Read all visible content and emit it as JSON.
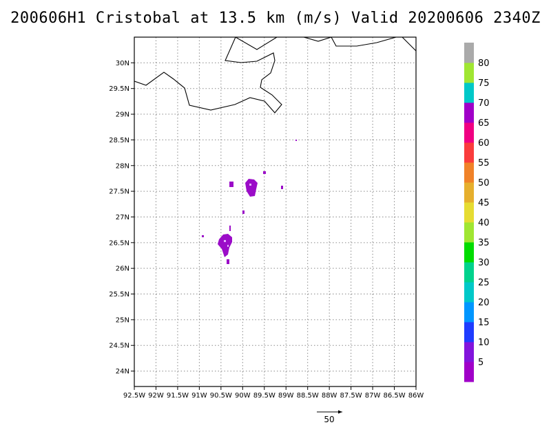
{
  "title": "200606H1 Cristobal at 13.5 km (m/s) Valid 20200606 2340Z",
  "map": {
    "lon_range": [
      -92.5,
      -86.0
    ],
    "lat_range": [
      23.7,
      30.5
    ],
    "x_ticks": [
      "92.5W",
      "92W",
      "91.5W",
      "91W",
      "90.5W",
      "90W",
      "89.5W",
      "89W",
      "88.5W",
      "88W",
      "87.5W",
      "87W",
      "86.5W",
      "86W"
    ],
    "x_tick_values": [
      -92.5,
      -92,
      -91.5,
      -91,
      -90.5,
      -90,
      -89.5,
      -89,
      -88.5,
      -88,
      -87.5,
      -87,
      -86.5,
      -86
    ],
    "y_ticks": [
      "30N",
      "29.5N",
      "29N",
      "28.5N",
      "28N",
      "27.5N",
      "27N",
      "26.5N",
      "26N",
      "25.5N",
      "25N",
      "24.5N",
      "24N"
    ],
    "y_tick_values": [
      30,
      29.5,
      29,
      28.5,
      28,
      27.5,
      27,
      26.5,
      26,
      25.5,
      25,
      24.5,
      24
    ],
    "grid": "dotted",
    "coastline_color": "#000000",
    "data_color": "#9b0cc8",
    "highlight_color": "#e4b0ff"
  },
  "colorbar": {
    "labels": [
      "5",
      "10",
      "15",
      "20",
      "25",
      "30",
      "35",
      "40",
      "45",
      "50",
      "55",
      "60",
      "65",
      "70",
      "75",
      "80"
    ],
    "colors": [
      "#a000c8",
      "#8214dc",
      "#1e3cff",
      "#0096ff",
      "#00c8c8",
      "#00d28c",
      "#00dc00",
      "#a0e632",
      "#e6dc32",
      "#e6af2d",
      "#f08228",
      "#fa3c3c",
      "#f00082",
      "#a000c8",
      "#00c8c8",
      "#a0e632",
      "#aaaaaa"
    ]
  },
  "vector": {
    "label": "50"
  }
}
